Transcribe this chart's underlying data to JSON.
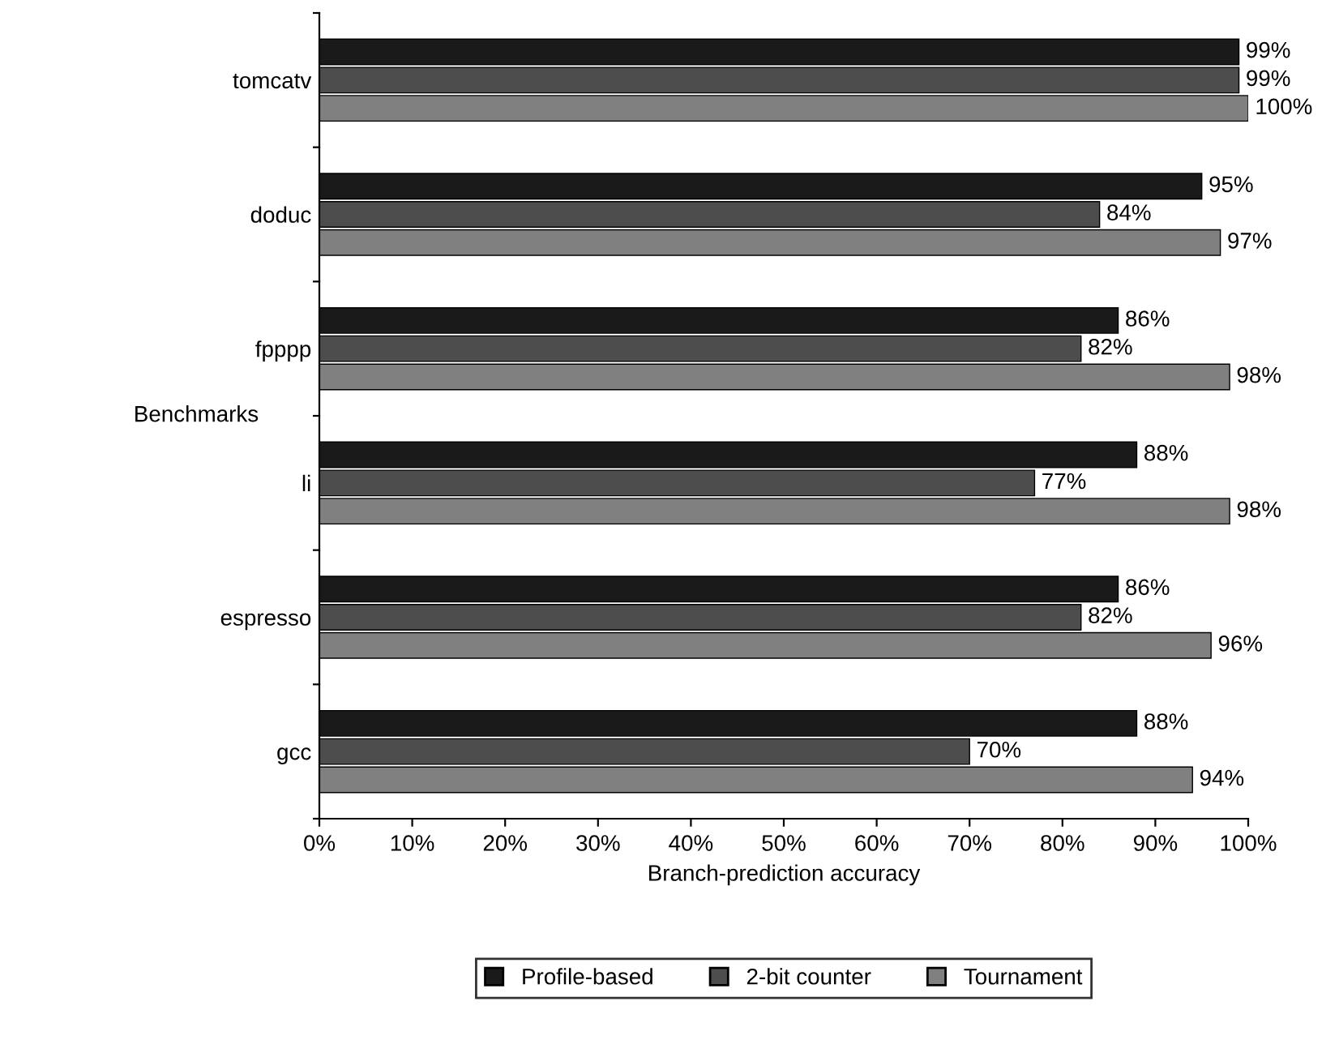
{
  "chart_data": {
    "type": "bar",
    "orientation": "horizontal",
    "xlabel": "Branch-prediction accuracy",
    "ylabel": "Benchmarks",
    "categories": [
      "tomcatv",
      "doduc",
      "fpppp",
      "li",
      "espresso",
      "gcc"
    ],
    "series": [
      {
        "name": "Profile-based",
        "color": "#1a1a1a",
        "values": [
          99,
          95,
          86,
          88,
          86,
          88
        ],
        "value_labels": [
          "99%",
          "95%",
          "86%",
          "88%",
          "86%",
          "88%"
        ]
      },
      {
        "name": "2-bit counter",
        "color": "#4d4d4d",
        "values": [
          99,
          84,
          82,
          77,
          82,
          70
        ],
        "value_labels": [
          "99%",
          "84%",
          "82%",
          "77%",
          "82%",
          "70%"
        ]
      },
      {
        "name": "Tournament",
        "color": "#808080",
        "values": [
          100,
          97,
          98,
          98,
          96,
          94
        ],
        "value_labels": [
          "100%",
          "97%",
          "98%",
          "98%",
          "96%",
          "94%"
        ]
      }
    ],
    "xlim": [
      0,
      100
    ],
    "xticks": [
      {
        "value": 0,
        "label": "0%"
      },
      {
        "value": 10,
        "label": "10%"
      },
      {
        "value": 20,
        "label": "20%"
      },
      {
        "value": 30,
        "label": "30%"
      },
      {
        "value": 40,
        "label": "40%"
      },
      {
        "value": 50,
        "label": "50%"
      },
      {
        "value": 60,
        "label": "60%"
      },
      {
        "value": 70,
        "label": "70%"
      },
      {
        "value": 80,
        "label": "80%"
      },
      {
        "value": 90,
        "label": "90%"
      },
      {
        "value": 100,
        "label": "100%"
      }
    ],
    "grid": false,
    "legend": "bottom"
  }
}
